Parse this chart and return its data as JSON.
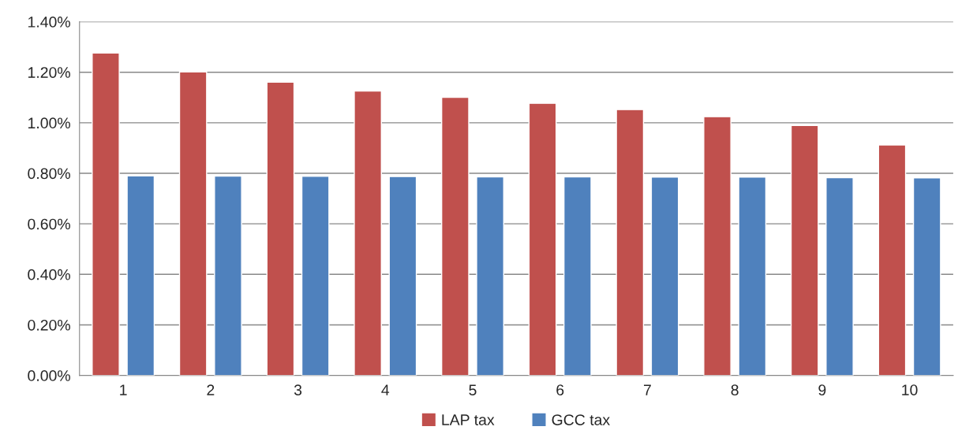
{
  "chart_data": {
    "type": "bar",
    "categories": [
      "1",
      "2",
      "3",
      "4",
      "5",
      "6",
      "7",
      "8",
      "9",
      "10"
    ],
    "series": [
      {
        "name": "LAP tax",
        "color": "#c0504d",
        "values": [
          1.276,
          1.201,
          1.161,
          1.126,
          1.101,
          1.077,
          1.052,
          1.024,
          0.989,
          0.912
        ]
      },
      {
        "name": "GCC tax",
        "color": "#4f81bd",
        "values": [
          0.79,
          0.789,
          0.788,
          0.787,
          0.786,
          0.786,
          0.785,
          0.785,
          0.783,
          0.782
        ]
      }
    ],
    "ylim": [
      0,
      1.4
    ],
    "yticks": [
      {
        "value": 0,
        "label": "0.00%"
      },
      {
        "value": 0.2,
        "label": "0.20%"
      },
      {
        "value": 0.4,
        "label": "0.40%"
      },
      {
        "value": 0.6,
        "label": "0.60%"
      },
      {
        "value": 0.8,
        "label": "0.80%"
      },
      {
        "value": 1.0,
        "label": "1.00%"
      },
      {
        "value": 1.2,
        "label": "1.20%"
      },
      {
        "value": 1.4,
        "label": "1.40%"
      }
    ],
    "grid": "y",
    "legend": "bottom"
  }
}
